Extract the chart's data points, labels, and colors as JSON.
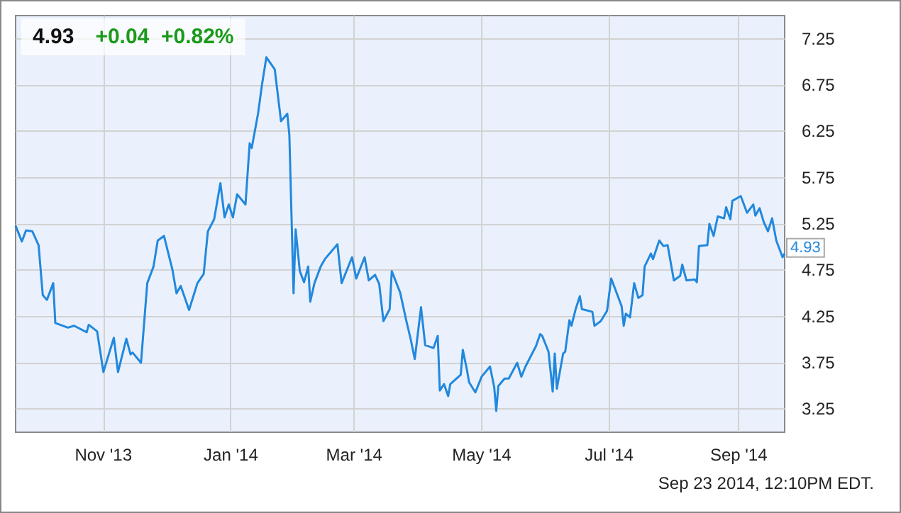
{
  "chart_data": {
    "type": "line",
    "title": "4.93",
    "subtitle": "+0.04  +0.82%",
    "annotations": [
      "Sep 23 2014, 12:10PM EDT."
    ],
    "x": [
      "2013-09-20",
      "2013-09-23",
      "2013-09-25",
      "2013-09-28",
      "2013-10-01",
      "2013-10-03",
      "2013-10-05",
      "2013-10-08",
      "2013-10-09",
      "2013-10-15",
      "2013-10-18",
      "2013-10-24",
      "2013-10-25",
      "2013-10-29",
      "2013-11-01",
      "2013-11-06",
      "2013-11-08",
      "2013-11-12",
      "2013-11-14",
      "2013-11-15",
      "2013-11-19",
      "2013-11-22",
      "2013-11-25",
      "2013-11-27",
      "2013-11-30",
      "2013-12-04",
      "2013-12-06",
      "2013-12-08",
      "2013-12-12",
      "2013-12-16",
      "2013-12-19",
      "2013-12-21",
      "2013-12-24",
      "2013-12-27",
      "2013-12-29",
      "2013-12-31",
      "2014-01-02",
      "2014-01-04",
      "2014-01-08",
      "2014-01-10",
      "2014-01-11",
      "2014-01-14",
      "2014-01-16",
      "2014-01-18",
      "2014-01-22",
      "2014-01-25",
      "2014-01-28",
      "2014-01-29",
      "2014-01-31",
      "2014-02-01",
      "2014-02-03",
      "2014-02-05",
      "2014-02-07",
      "2014-02-08",
      "2014-02-10",
      "2014-02-13",
      "2014-02-15",
      "2014-02-21",
      "2014-02-23",
      "2014-02-28",
      "2014-03-02",
      "2014-03-06",
      "2014-03-08",
      "2014-03-11",
      "2014-03-13",
      "2014-03-15",
      "2014-03-18",
      "2014-03-19",
      "2014-03-23",
      "2014-03-26",
      "2014-03-28",
      "2014-03-30",
      "2014-04-02",
      "2014-04-04",
      "2014-04-08",
      "2014-04-10",
      "2014-04-11",
      "2014-04-13",
      "2014-04-15",
      "2014-04-16",
      "2014-04-21",
      "2014-04-22",
      "2014-04-24",
      "2014-04-25",
      "2014-04-28",
      "2014-05-01",
      "2014-05-05",
      "2014-05-07",
      "2014-05-08",
      "2014-05-09",
      "2014-05-12",
      "2014-05-14",
      "2014-05-18",
      "2014-05-20",
      "2014-05-22",
      "2014-05-27",
      "2014-05-29",
      "2014-05-30",
      "2014-06-02",
      "2014-06-04",
      "2014-06-05",
      "2014-06-06",
      "2014-06-09",
      "2014-06-10",
      "2014-06-12",
      "2014-06-13",
      "2014-06-15",
      "2014-06-17",
      "2014-06-18",
      "2014-06-23",
      "2014-06-24",
      "2014-06-27",
      "2014-06-30",
      "2014-07-02",
      "2014-07-07",
      "2014-07-08",
      "2014-07-09",
      "2014-07-11",
      "2014-07-13",
      "2014-07-15",
      "2014-07-17",
      "2014-07-18",
      "2014-07-21",
      "2014-07-22",
      "2014-07-25",
      "2014-07-27",
      "2014-07-29",
      "2014-08-01",
      "2014-08-04",
      "2014-08-05",
      "2014-08-07",
      "2014-08-11",
      "2014-08-12",
      "2014-08-13",
      "2014-08-17",
      "2014-08-18",
      "2014-08-20",
      "2014-08-22",
      "2014-08-25",
      "2014-08-26",
      "2014-08-28",
      "2014-08-29",
      "2014-09-02",
      "2014-09-05",
      "2014-09-08",
      "2014-09-09",
      "2014-09-11",
      "2014-09-13",
      "2014-09-15",
      "2014-09-17",
      "2014-09-19",
      "2014-09-22",
      "2014-09-23"
    ],
    "series": [
      {
        "color": "#2288dd",
        "values": [
          5.23,
          5.06,
          5.18,
          5.17,
          5.02,
          4.48,
          4.43,
          4.61,
          4.18,
          4.13,
          4.15,
          4.08,
          4.16,
          4.09,
          3.65,
          4.02,
          3.65,
          4.01,
          3.84,
          3.86,
          3.75,
          4.61,
          4.79,
          5.07,
          5.12,
          4.76,
          4.5,
          4.58,
          4.32,
          4.61,
          4.71,
          5.17,
          5.3,
          5.69,
          5.32,
          5.46,
          5.32,
          5.57,
          5.46,
          6.12,
          6.07,
          6.44,
          6.77,
          7.05,
          6.92,
          6.36,
          6.44,
          6.21,
          4.5,
          5.19,
          4.74,
          4.62,
          4.79,
          4.41,
          4.61,
          4.79,
          4.87,
          5.03,
          4.61,
          4.89,
          4.66,
          4.89,
          4.64,
          4.7,
          4.6,
          4.2,
          4.33,
          4.74,
          4.51,
          4.2,
          4.01,
          3.79,
          4.35,
          3.94,
          3.91,
          4.04,
          3.45,
          3.52,
          3.39,
          3.52,
          3.62,
          3.89,
          3.67,
          3.54,
          3.43,
          3.6,
          3.71,
          3.49,
          3.23,
          3.5,
          3.58,
          3.58,
          3.75,
          3.6,
          3.71,
          3.93,
          4.06,
          4.04,
          3.87,
          3.44,
          3.85,
          3.47,
          3.85,
          3.87,
          4.21,
          4.15,
          4.33,
          4.47,
          4.33,
          4.3,
          4.15,
          4.2,
          4.31,
          4.66,
          4.36,
          4.15,
          4.28,
          4.24,
          4.61,
          4.45,
          4.48,
          4.79,
          4.93,
          4.87,
          5.07,
          5.01,
          5.02,
          4.64,
          4.69,
          4.81,
          4.64,
          4.65,
          4.62,
          5.01,
          5.02,
          5.25,
          5.12,
          5.33,
          5.31,
          5.43,
          5.3,
          5.5,
          5.55,
          5.37,
          5.46,
          5.34,
          5.42,
          5.27,
          5.17,
          5.31,
          5.07,
          4.89,
          4.93
        ],
        "value_labels": [
          null,
          null,
          null,
          null,
          null,
          null,
          null,
          null,
          null,
          null,
          null,
          null,
          null,
          null,
          null,
          null,
          null,
          null,
          null,
          null,
          null,
          null,
          null,
          null,
          null,
          null,
          null,
          null,
          null,
          null,
          null,
          null,
          null,
          null,
          null,
          null,
          null,
          null,
          null,
          null,
          null,
          null,
          null,
          null,
          null,
          null,
          null,
          null,
          null,
          null,
          null,
          null,
          null,
          null,
          null,
          null,
          null,
          null,
          null,
          null,
          null,
          null,
          null,
          null,
          null,
          null,
          null,
          null,
          null,
          null,
          null,
          null,
          null,
          null,
          null,
          null,
          null,
          null,
          null,
          null,
          null,
          null,
          null,
          null,
          null,
          null,
          null,
          null,
          null,
          null,
          null,
          null,
          null,
          null,
          null,
          null,
          null,
          null,
          null,
          null,
          null,
          null,
          null,
          null,
          null,
          null,
          null,
          null,
          null,
          null,
          null,
          null,
          null,
          null,
          null,
          null,
          null,
          null,
          null,
          null,
          null,
          null,
          null,
          null,
          null,
          null,
          null,
          null,
          null,
          null,
          null,
          null,
          null,
          null,
          null,
          null,
          null,
          null,
          null,
          null,
          null,
          null,
          null,
          null,
          null,
          null,
          null,
          null,
          null,
          null,
          null,
          null,
          "4.93"
        ]
      }
    ],
    "xlim": [
      "2013-09-20",
      "2014-09-23"
    ],
    "xticks": [
      {
        "value": "2013-11-01",
        "label": "Nov '13"
      },
      {
        "value": "2014-01-01",
        "label": "Jan '14"
      },
      {
        "value": "2014-03-01",
        "label": "Mar '14"
      },
      {
        "value": "2014-05-01",
        "label": "May '14"
      },
      {
        "value": "2014-07-01",
        "label": "Jul '14"
      },
      {
        "value": "2014-09-01",
        "label": "Sep '14"
      }
    ],
    "ylim": [
      3.0,
      7.5
    ],
    "yticks": [
      3.25,
      3.75,
      4.25,
      4.75,
      5.25,
      5.75,
      6.25,
      6.75,
      7.25
    ],
    "grid": true,
    "marker": "none",
    "line_style": "solid"
  }
}
